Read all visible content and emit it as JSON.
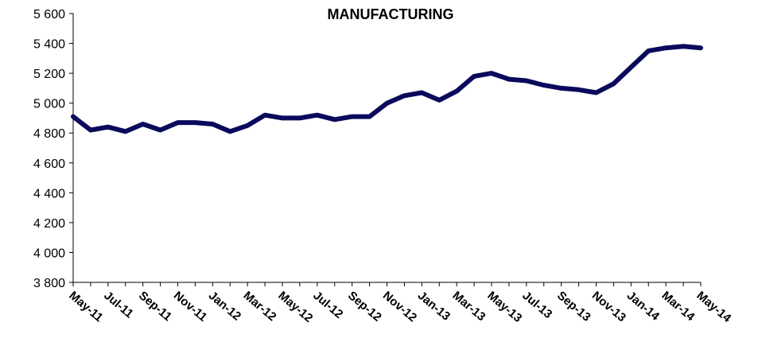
{
  "chart_data": {
    "type": "line",
    "title": "MANUFACTURING",
    "xlabel": "",
    "ylabel": "",
    "ylim": [
      3800,
      5600
    ],
    "yticks": [
      3800,
      4000,
      4200,
      4400,
      4600,
      4800,
      5000,
      5200,
      5400,
      5600
    ],
    "ytick_labels": [
      "3 800",
      "4 000",
      "4 200",
      "4 400",
      "4 600",
      "4 800",
      "5 000",
      "5 200",
      "5 400",
      "5 600"
    ],
    "xtick_labels": [
      "May-11",
      "Jul-11",
      "Sep-11",
      "Nov-11",
      "Jan-12",
      "Mar-12",
      "May-12",
      "Jul-12",
      "Sep-12",
      "Nov-12",
      "Jan-13",
      "Mar-13",
      "May-13",
      "Jul-13",
      "Sep-13",
      "Nov-13",
      "Jan-14",
      "Mar-14",
      "May-14"
    ],
    "grid": false,
    "line_color": "#0a0a5c",
    "categories": [
      "May-11",
      "Jun-11",
      "Jul-11",
      "Aug-11",
      "Sep-11",
      "Oct-11",
      "Nov-11",
      "Dec-11",
      "Jan-12",
      "Feb-12",
      "Mar-12",
      "Apr-12",
      "May-12",
      "Jun-12",
      "Jul-12",
      "Aug-12",
      "Sep-12",
      "Oct-12",
      "Nov-12",
      "Dec-12",
      "Jan-13",
      "Feb-13",
      "Mar-13",
      "Apr-13",
      "May-13",
      "Jun-13",
      "Jul-13",
      "Aug-13",
      "Sep-13",
      "Oct-13",
      "Nov-13",
      "Dec-13",
      "Jan-14",
      "Feb-14",
      "Mar-14",
      "Apr-14",
      "May-14"
    ],
    "values": [
      4910,
      4820,
      4840,
      4810,
      4860,
      4820,
      4870,
      4870,
      4860,
      4810,
      4850,
      4920,
      4900,
      4900,
      4920,
      4890,
      4910,
      4910,
      5000,
      5050,
      5070,
      5020,
      5080,
      5180,
      5200,
      5160,
      5150,
      5120,
      5100,
      5090,
      5070,
      5130,
      5240,
      5350,
      5370,
      5380,
      5370
    ]
  }
}
